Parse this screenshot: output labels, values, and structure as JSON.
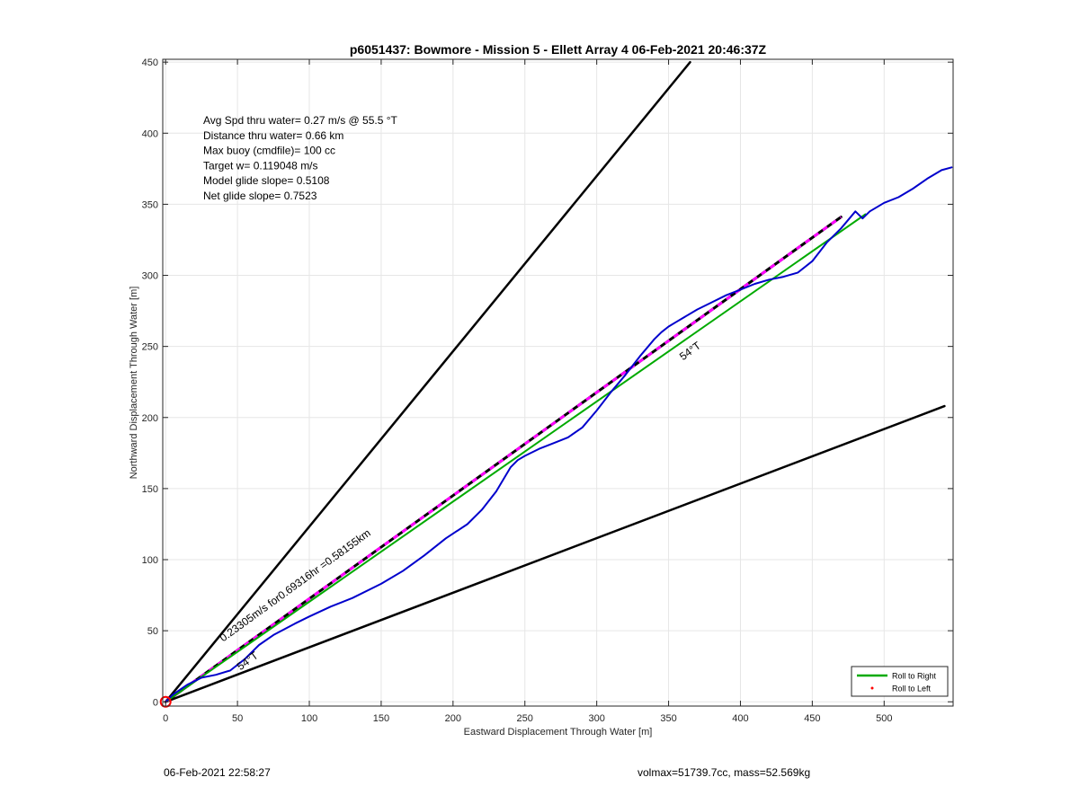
{
  "footer": {
    "timestamp": "06-Feb-2021 22:58:27",
    "volmass": "volmax=51739.7cc, mass=52.569kg"
  },
  "chart_data": {
    "type": "line",
    "title": "p6051437: Bowmore - Mission 5 - Ellett Array 4 06-Feb-2021 20:46:37Z",
    "xlabel": "Eastward Displacement Through Water [m]",
    "ylabel": "Northward Displacement Through Water [m]",
    "xlim": [
      -2,
      548
    ],
    "ylim": [
      -3,
      452
    ],
    "xticks": [
      0,
      50,
      100,
      150,
      200,
      250,
      300,
      350,
      400,
      450,
      500
    ],
    "yticks": [
      0,
      50,
      100,
      150,
      200,
      250,
      300,
      350,
      400,
      450
    ],
    "grid": true,
    "legend_position": "bottom-right",
    "legend": [
      {
        "label": "Roll to Right",
        "color": "#00aa00",
        "style": "line"
      },
      {
        "label": "Roll to Left",
        "color": "#ff0000",
        "style": "dot"
      }
    ],
    "info_text": [
      "Avg Spd thru water=  0.27 m/s @  55.5 °T",
      "Distance thru water=  0.66 km",
      "Max buoy (cmdfile)= 100 cc",
      "Target w= 0.119048 m/s",
      "Model glide slope= 0.5108",
      "Net glide slope= 0.7523"
    ],
    "annotations": [
      {
        "text": "0.23305m/s for0.69316hr =0.58155km",
        "x": 40,
        "y": 42,
        "angle_deg": 36
      },
      {
        "text": "54°T",
        "x": 52,
        "y": 22,
        "angle_deg": 36
      },
      {
        "text": "54°T",
        "x": 360,
        "y": 240,
        "angle_deg": 36
      }
    ],
    "series": [
      {
        "name": "",
        "role": "envelope",
        "color": "#000000",
        "width": 2.5,
        "x": [
          0,
          365
        ],
        "y": [
          0,
          450
        ]
      },
      {
        "name": "",
        "role": "envelope",
        "color": "#000000",
        "width": 2.5,
        "x": [
          0,
          542
        ],
        "y": [
          0,
          208
        ]
      },
      {
        "name": "",
        "role": "net-displacement",
        "color": "#000000",
        "width": 3,
        "x": [
          0,
          470
        ],
        "y": [
          0,
          341
        ]
      },
      {
        "name": "",
        "role": "net-displacement-overlay",
        "color": "#ff00ff",
        "width": 3,
        "dash": true,
        "x": [
          0,
          470
        ],
        "y": [
          0,
          341
        ]
      },
      {
        "name": "Roll to Right",
        "role": "segment",
        "color": "#00aa00",
        "width": 2,
        "x": [
          0,
          487
        ],
        "y": [
          0,
          343
        ]
      },
      {
        "name": "",
        "role": "track",
        "color": "#0000cc",
        "width": 2,
        "x": [
          0,
          5,
          15,
          25,
          35,
          45,
          55,
          65,
          75,
          90,
          100,
          115,
          130,
          150,
          165,
          180,
          195,
          210,
          220,
          230,
          240,
          245,
          250,
          260,
          270,
          280,
          290,
          300,
          310,
          320,
          330,
          340,
          345,
          350,
          355,
          360,
          370,
          380,
          390,
          400,
          410,
          420,
          430,
          440,
          450,
          460,
          470,
          480,
          485,
          490,
          500,
          510,
          520,
          530,
          540,
          547
        ],
        "y": [
          0,
          5,
          12,
          17,
          19,
          22,
          30,
          40,
          47,
          55,
          60,
          67,
          73,
          83,
          92,
          103,
          115,
          125,
          135,
          148,
          165,
          170,
          173,
          178,
          182,
          186,
          193,
          205,
          218,
          230,
          243,
          255,
          260,
          264,
          267,
          270,
          276,
          281,
          286,
          290,
          294,
          297,
          299,
          302,
          310,
          323,
          333,
          345,
          340,
          345,
          351,
          355,
          361,
          368,
          374,
          376
        ]
      }
    ],
    "start_marker": {
      "x": 0,
      "y": 0,
      "color": "#ff0000"
    }
  }
}
